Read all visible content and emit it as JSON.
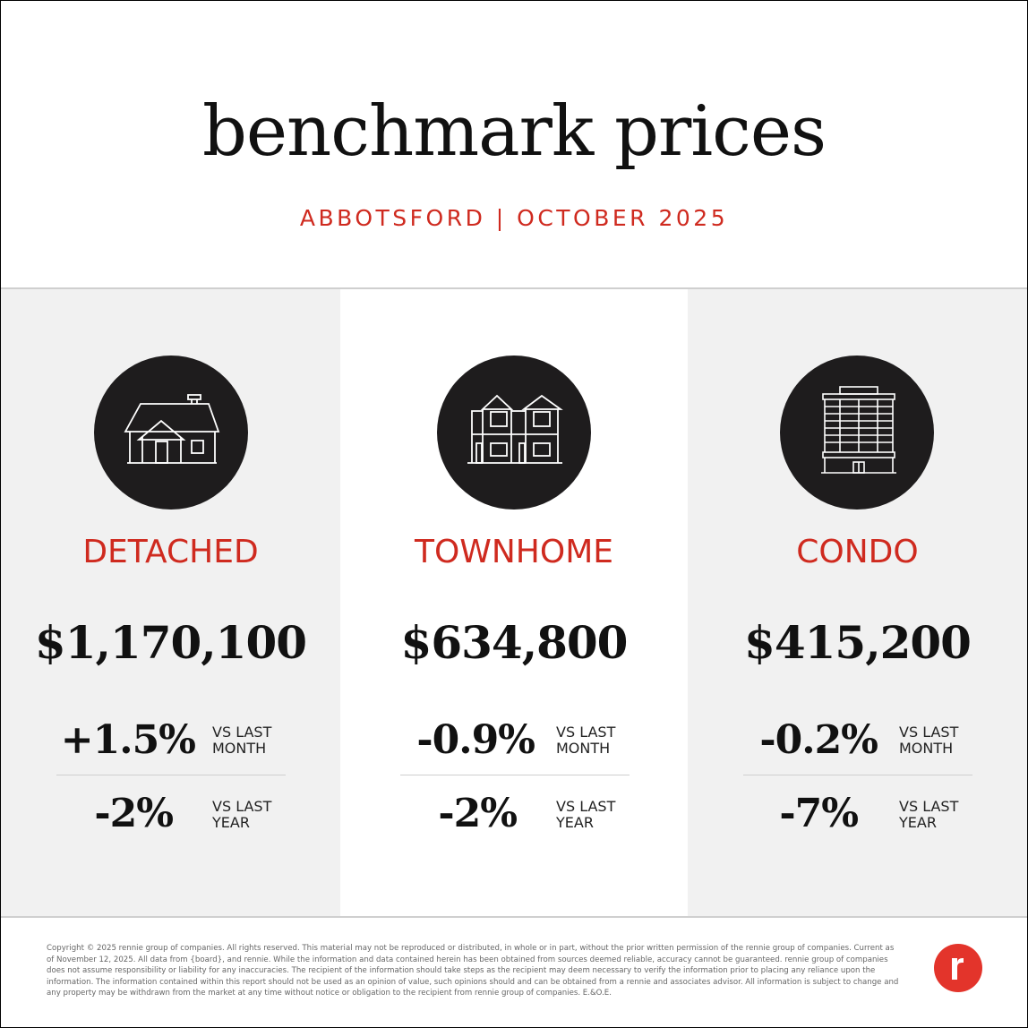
{
  "header": {
    "title": "benchmark prices",
    "subtitle": "ABBOTSFORD | OCTOBER 2025"
  },
  "colors": {
    "accent": "#cf2a1f",
    "icon_circle": "#1e1c1d",
    "panel_gray": "#f1f1f1",
    "logo": "#e3342b"
  },
  "columns": [
    {
      "icon": "detached-house-icon",
      "label": "DETACHED",
      "price": "$1,170,100",
      "month_change": "+1.5%",
      "month_label": "VS LAST MONTH",
      "year_change": "-2%",
      "year_label": "VS LAST YEAR"
    },
    {
      "icon": "townhome-icon",
      "label": "TOWNHOME",
      "price": "$634,800",
      "month_change": "-0.9%",
      "month_label": "VS LAST MONTH",
      "year_change": "-2%",
      "year_label": "VS LAST YEAR"
    },
    {
      "icon": "condo-building-icon",
      "label": "CONDO",
      "price": "$415,200",
      "month_change": "-0.2%",
      "month_label": "VS LAST MONTH",
      "year_change": "-7%",
      "year_label": "VS LAST YEAR"
    }
  ],
  "footer": {
    "disclaimer": "Copyright © 2025 rennie group of companies. All rights reserved. This material may not be reproduced or distributed, in whole or in part, without the prior written permission of the rennie group of companies. Current as of November 12, 2025. All data from {board}, and rennie. While the information and data contained herein has been obtained from sources deemed reliable, accuracy cannot be guaranteed. rennie group of companies does not assume responsibility or liability for any inaccuracies. The recipient of the information should take steps as the recipient may deem necessary to verify the information prior to placing any reliance upon the information. The information contained within this report should not be used as an opinion of value, such opinions should and can be obtained from a rennie and associates advisor. All information is subject to change and any property may be withdrawn from the market at any time without notice or obligation to the recipient from rennie group of companies. E.&O.E.",
    "logo_icon": "rennie-logo-icon"
  }
}
